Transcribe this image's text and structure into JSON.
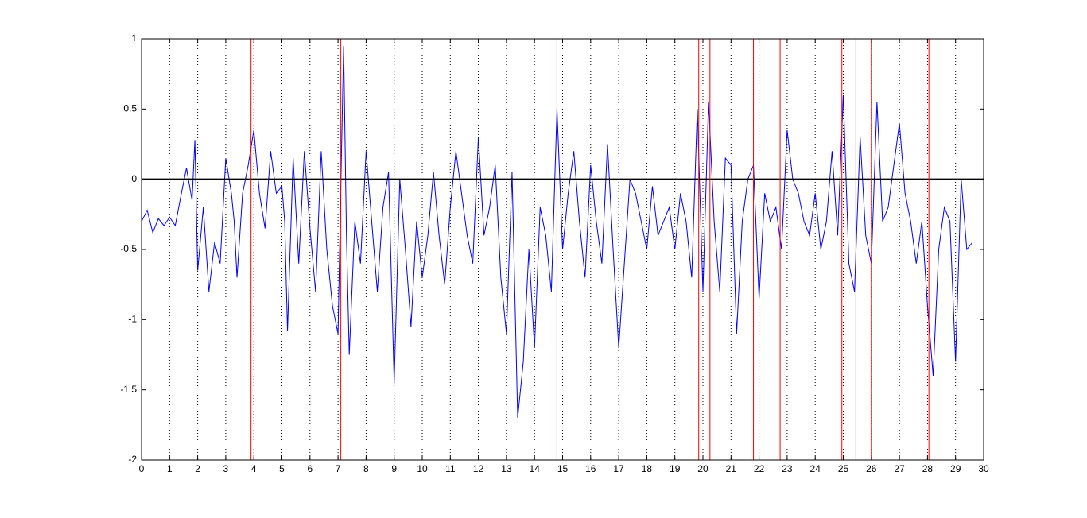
{
  "chart_data": {
    "type": "line",
    "x": [
      0,
      0.2,
      0.4,
      0.6,
      0.8,
      1.0,
      1.2,
      1.4,
      1.6,
      1.8,
      1.9,
      2.0,
      2.2,
      2.4,
      2.6,
      2.8,
      3.0,
      3.2,
      3.3,
      3.4,
      3.6,
      3.8,
      4.0,
      4.2,
      4.4,
      4.6,
      4.8,
      5.0,
      5.1,
      5.2,
      5.4,
      5.6,
      5.8,
      6.0,
      6.2,
      6.4,
      6.6,
      6.8,
      7.0,
      7.1,
      7.2,
      7.3,
      7.4,
      7.6,
      7.8,
      8.0,
      8.2,
      8.4,
      8.6,
      8.8,
      9.0,
      9.2,
      9.4,
      9.6,
      9.8,
      10.0,
      10.2,
      10.4,
      10.6,
      10.8,
      11.0,
      11.2,
      11.4,
      11.6,
      11.8,
      12.0,
      12.2,
      12.4,
      12.6,
      12.8,
      13.0,
      13.2,
      13.4,
      13.6,
      13.8,
      14.0,
      14.2,
      14.4,
      14.6,
      14.8,
      15.0,
      15.2,
      15.4,
      15.6,
      15.8,
      16.0,
      16.2,
      16.4,
      16.6,
      16.8,
      17.0,
      17.2,
      17.4,
      17.6,
      17.8,
      18.0,
      18.2,
      18.4,
      18.6,
      18.8,
      19.0,
      19.2,
      19.4,
      19.6,
      19.8,
      20.0,
      20.2,
      20.4,
      20.6,
      20.8,
      21.0,
      21.2,
      21.4,
      21.6,
      21.8,
      22.0,
      22.2,
      22.4,
      22.6,
      22.8,
      23.0,
      23.2,
      23.4,
      23.6,
      23.8,
      24.0,
      24.2,
      24.4,
      24.6,
      24.8,
      25.0,
      25.2,
      25.4,
      25.6,
      25.8,
      26.0,
      26.2,
      26.4,
      26.6,
      26.8,
      27.0,
      27.2,
      27.4,
      27.6,
      27.8,
      28.0,
      28.2,
      28.4,
      28.6,
      28.8,
      29.0,
      29.2,
      29.4,
      29.6
    ],
    "series": [
      {
        "color": "#0000ff",
        "values": [
          -0.3,
          -0.22,
          -0.38,
          -0.28,
          -0.33,
          -0.27,
          -0.33,
          -0.12,
          0.08,
          -0.15,
          0.28,
          -0.65,
          -0.2,
          -0.8,
          -0.45,
          -0.6,
          0.15,
          -0.1,
          -0.3,
          -0.7,
          -0.1,
          0.1,
          0.35,
          -0.1,
          -0.35,
          0.2,
          -0.1,
          -0.05,
          -0.3,
          -1.08,
          0.15,
          -0.6,
          0.2,
          -0.35,
          -0.8,
          0.2,
          -0.5,
          -0.9,
          -1.1,
          -0.05,
          0.95,
          -0.4,
          -1.25,
          -0.3,
          -0.6,
          0.2,
          -0.3,
          -0.8,
          -0.2,
          0.05,
          -1.45,
          0.0,
          -0.5,
          -1.05,
          -0.3,
          -0.7,
          -0.4,
          0.05,
          -0.4,
          -0.75,
          -0.2,
          0.2,
          -0.1,
          -0.4,
          -0.6,
          0.3,
          -0.4,
          -0.2,
          0.1,
          -0.7,
          -1.1,
          0.05,
          -1.7,
          -1.3,
          -0.5,
          -1.2,
          -0.2,
          -0.4,
          -0.8,
          0.5,
          -0.5,
          -0.1,
          0.2,
          -0.3,
          -0.7,
          0.1,
          -0.3,
          -0.6,
          0.25,
          -0.5,
          -1.2,
          -0.6,
          0.0,
          -0.1,
          -0.3,
          -0.5,
          -0.05,
          -0.4,
          -0.3,
          -0.2,
          -0.5,
          -0.1,
          -0.3,
          -0.7,
          0.5,
          -0.8,
          0.55,
          -0.3,
          -0.8,
          0.15,
          0.1,
          -1.1,
          -0.3,
          0.0,
          0.1,
          -0.85,
          -0.1,
          -0.3,
          -0.2,
          -0.5,
          0.35,
          0.0,
          -0.1,
          -0.3,
          -0.4,
          -0.1,
          -0.5,
          -0.3,
          0.2,
          -0.4,
          0.6,
          -0.6,
          -0.8,
          0.3,
          -0.4,
          -0.6,
          0.55,
          -0.3,
          -0.2,
          0.1,
          0.4,
          -0.1,
          -0.3,
          -0.6,
          -0.3,
          -0.9,
          -1.4,
          -0.5,
          -0.2,
          -0.3,
          -1.3,
          0.0,
          -0.5,
          -0.45
        ]
      }
    ],
    "markers": {
      "color": "#ff0000",
      "x": [
        3.9,
        7.1,
        14.8,
        19.85,
        20.25,
        21.8,
        22.75,
        24.95,
        25.45,
        26.0,
        28.05
      ]
    },
    "hline": {
      "color": "#000000",
      "y": 0
    },
    "xlim": [
      0,
      30
    ],
    "xticks": [
      0,
      1,
      2,
      3,
      4,
      5,
      6,
      7,
      8,
      9,
      10,
      11,
      12,
      13,
      14,
      15,
      16,
      17,
      18,
      19,
      20,
      21,
      22,
      23,
      24,
      25,
      26,
      27,
      28,
      29,
      30
    ],
    "ylim": [
      -2,
      1
    ],
    "yticks": [
      -2,
      -1.5,
      -1,
      -0.5,
      0,
      0.5,
      1
    ],
    "xgrid": true
  }
}
